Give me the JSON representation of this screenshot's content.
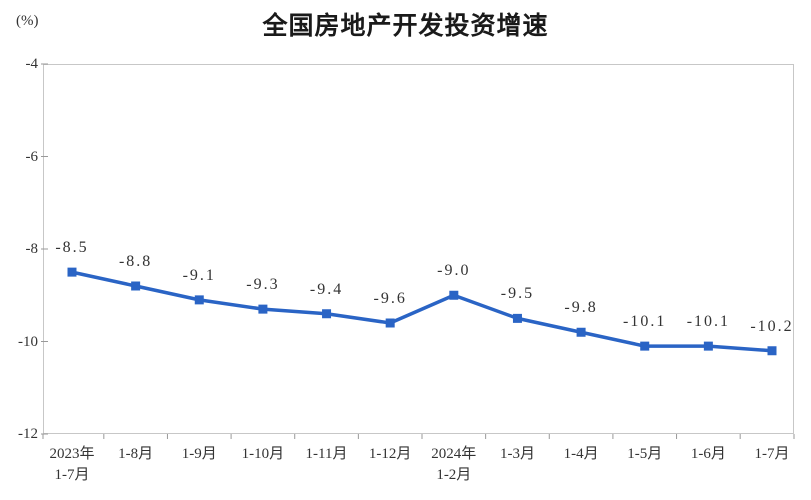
{
  "colors": {
    "line": "#2a64c5",
    "marker": "#2a64c5",
    "plot_border": "#c7c7c7",
    "tick": "#999999",
    "text": "#333333",
    "title": "#1a1a1a",
    "background": "#ffffff"
  },
  "chart_data": {
    "type": "line",
    "title": "全国房地产开发投资增速",
    "unit_label": "(%)",
    "series_name": "全国房地产开发投资增速",
    "categories": [
      "2023年\n1-7月",
      "1-8月",
      "1-9月",
      "1-10月",
      "1-11月",
      "1-12月",
      "2024年\n1-2月",
      "1-3月",
      "1-4月",
      "1-5月",
      "1-6月",
      "1-7月"
    ],
    "values": [
      -8.5,
      -8.8,
      -9.1,
      -9.3,
      -9.4,
      -9.6,
      -9.0,
      -9.5,
      -9.8,
      -10.1,
      -10.1,
      -10.2
    ],
    "data_labels": [
      "-8.5",
      "-8.8",
      "-9.1",
      "-9.3",
      "-9.4",
      "-9.6",
      "-9.0",
      "-9.5",
      "-9.8",
      "-10.1",
      "-10.1",
      "-10.2"
    ],
    "xlabel": "",
    "ylabel": "(%)",
    "ylim": [
      -12,
      -4
    ],
    "yticks": [
      -4,
      -6,
      -8,
      -10,
      -12
    ],
    "grid": false,
    "legend": "none"
  }
}
